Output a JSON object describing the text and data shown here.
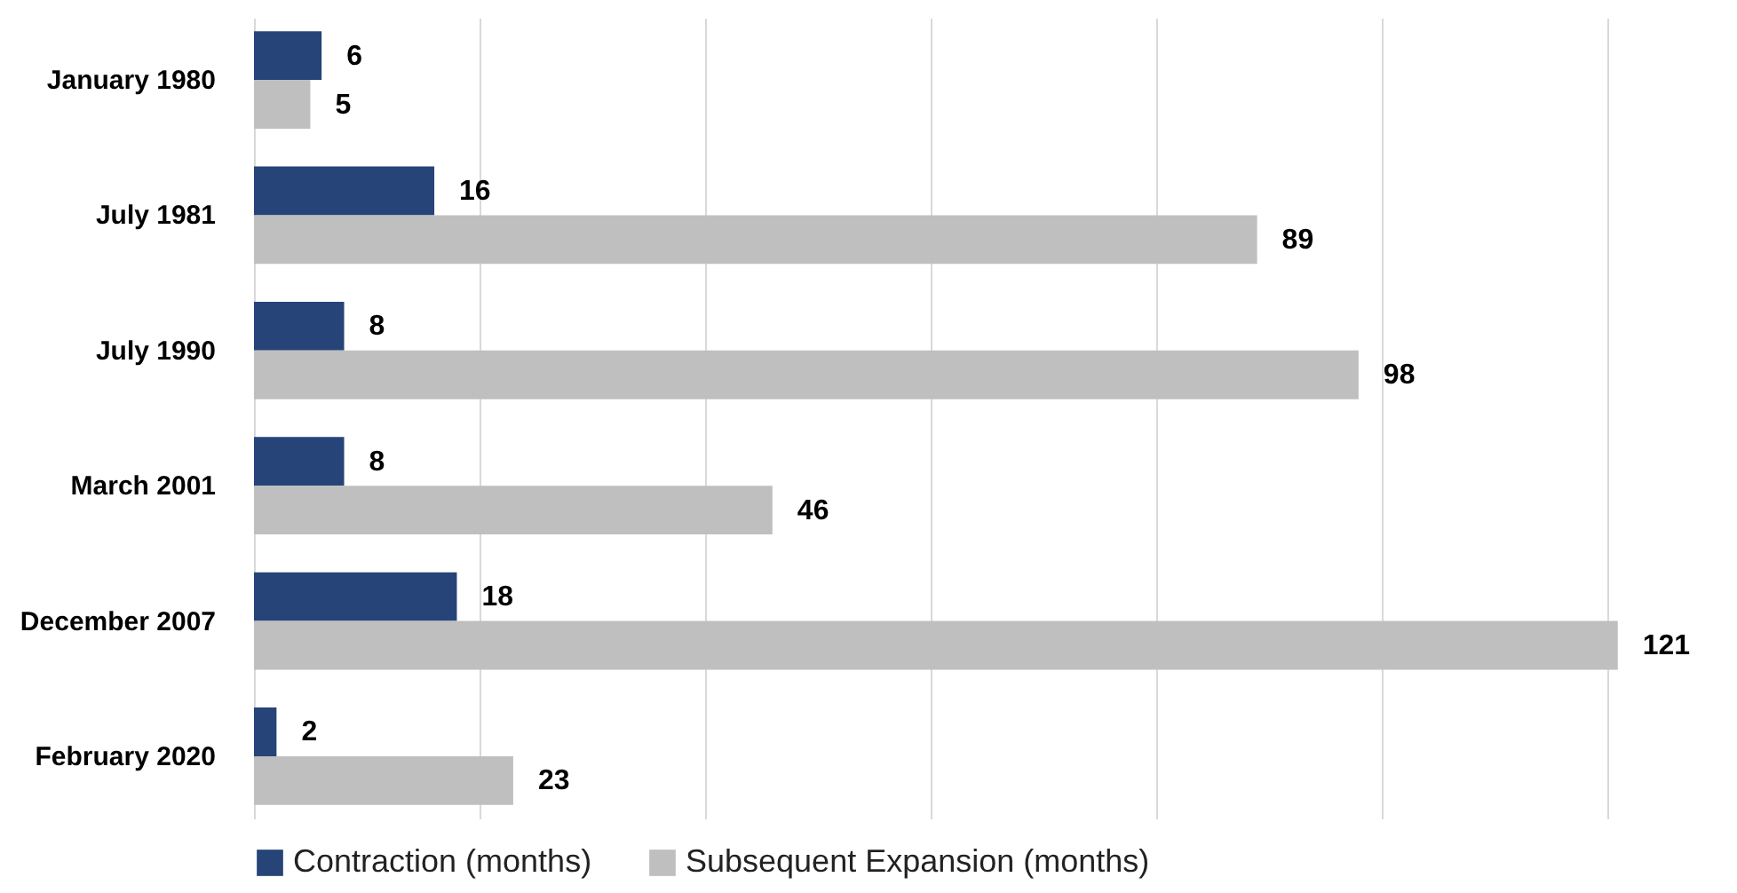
{
  "chart_data": {
    "type": "bar",
    "orientation": "horizontal",
    "categories": [
      "January 1980",
      "July 1981",
      "July 1990",
      "March 2001",
      "December 2007",
      "February 2020"
    ],
    "series": [
      {
        "name": "Contraction (months)",
        "color": "#264478",
        "values": [
          6,
          16,
          8,
          8,
          18,
          2
        ]
      },
      {
        "name": "Subsequent Expansion (months)",
        "color": "#bfbfbf",
        "values": [
          5,
          89,
          98,
          46,
          121,
          23
        ]
      }
    ],
    "grid": "x",
    "legend": "bottom",
    "tick_labels": "y",
    "data_labels": true
  }
}
